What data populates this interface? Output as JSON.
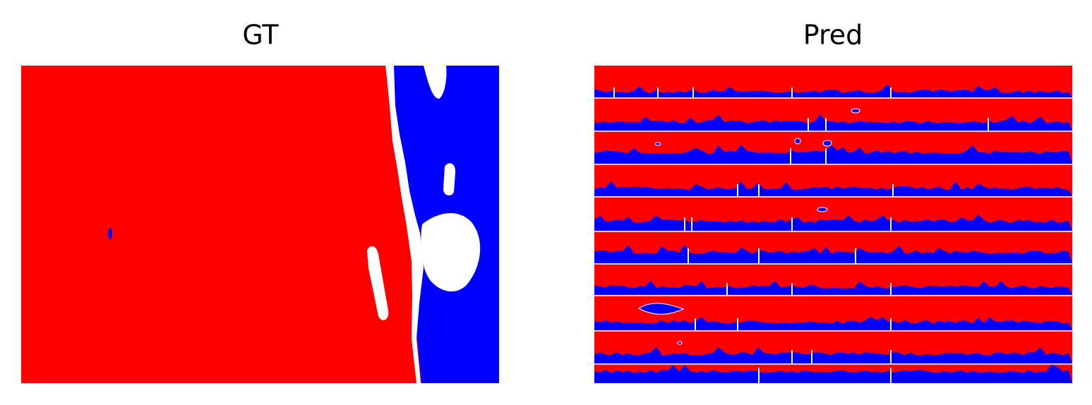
{
  "panels": [
    {
      "title": "GT"
    },
    {
      "title": "Pred"
    }
  ]
}
